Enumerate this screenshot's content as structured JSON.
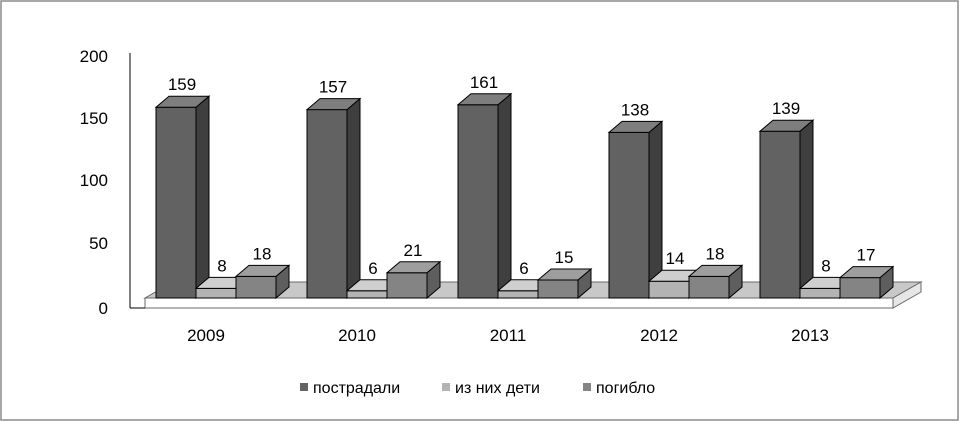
{
  "chart_data": {
    "type": "bar",
    "title": "",
    "xlabel": "",
    "ylabel": "",
    "categories": [
      "2009",
      "2010",
      "2011",
      "2012",
      "2013"
    ],
    "series": [
      {
        "name": "пострадали",
        "values": [
          159,
          157,
          161,
          138,
          139
        ],
        "color": "#626262",
        "side_color": "#3f3f3f",
        "top_color": "#7e7e7e"
      },
      {
        "name": "из них дети",
        "values": [
          8,
          6,
          6,
          14,
          8
        ],
        "color": "#b3b3b3",
        "side_color": "#8f8f8f",
        "top_color": "#cfcfcf"
      },
      {
        "name": "погибло",
        "values": [
          18,
          21,
          15,
          18,
          17
        ],
        "color": "#848484",
        "side_color": "#5e5e5e",
        "top_color": "#9e9e9e"
      }
    ],
    "ylim": [
      0,
      200
    ],
    "yticks": [
      "0",
      "50",
      "100",
      "150",
      "200"
    ],
    "grid": false,
    "legend_position": "bottom",
    "three_d": true,
    "floor_color": "#c8c8c8"
  }
}
